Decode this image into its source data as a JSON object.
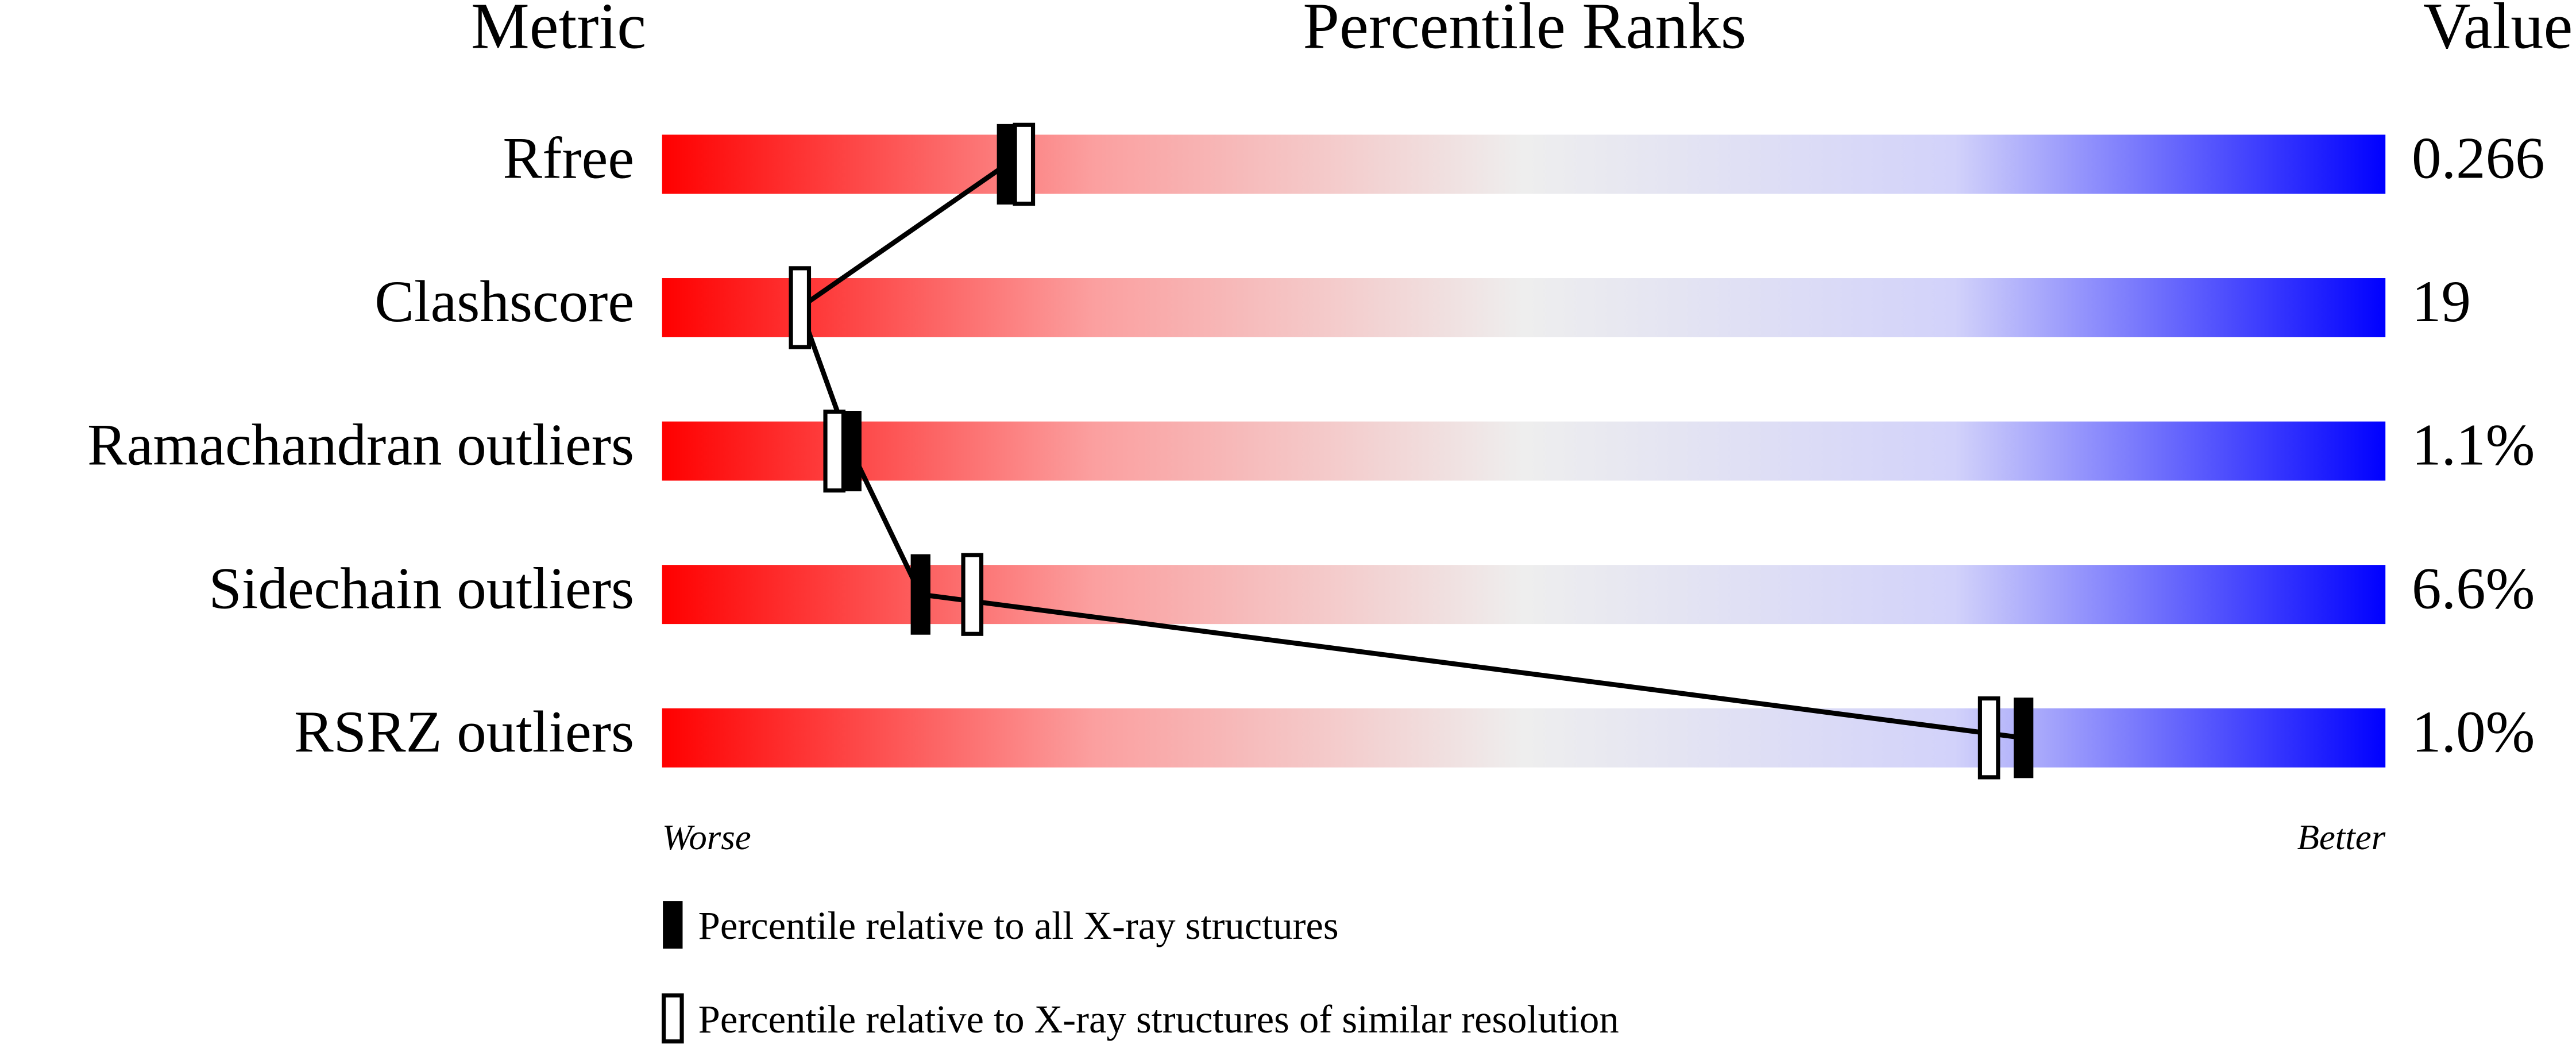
{
  "chart_data": {
    "type": "percentile",
    "metric_header": "Metric",
    "title": "Percentile Ranks",
    "value_header": "Value",
    "categories": [
      "Rfree",
      "Clashscore",
      "Ramachandran outliers",
      "Sidechain outliers",
      "RSRZ outliers"
    ],
    "metric_values": [
      "0.266",
      "19",
      "1.1%",
      "6.6%",
      "1.0%"
    ],
    "xlim": [
      0,
      100
    ],
    "x_low_label": "Worse",
    "x_high_label": "Better",
    "series": [
      {
        "name": "Percentile relative to all X-ray structures",
        "color": "#000000",
        "filled": true,
        "values": [
          20,
          8,
          11,
          15,
          79
        ]
      },
      {
        "name": "Percentile relative to X-ray structures of similar resolution",
        "color": "#000000",
        "filled": false,
        "values": [
          21,
          8,
          10,
          18,
          77
        ]
      }
    ]
  }
}
